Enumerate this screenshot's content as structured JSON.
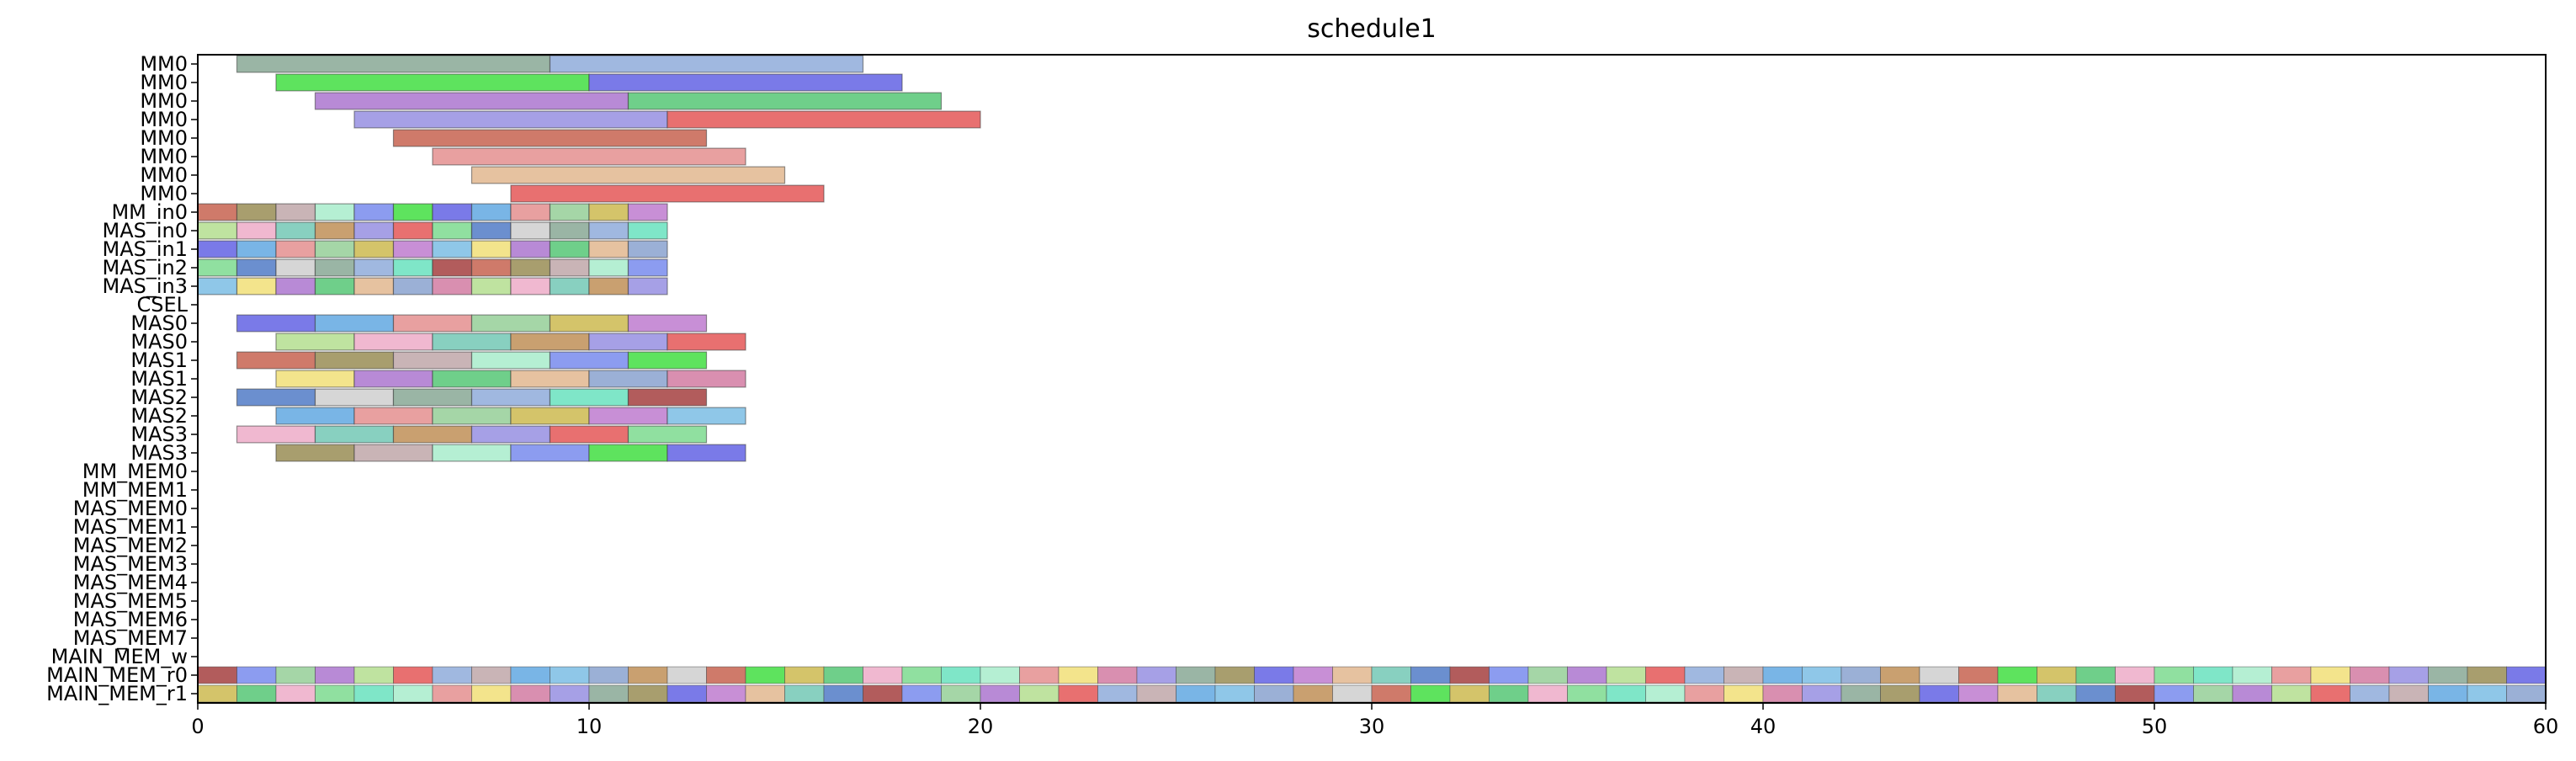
{
  "chart_data": {
    "type": "gantt",
    "title": "schedule1",
    "xlabel": "",
    "ylabel": "",
    "xlim": [
      0,
      60
    ],
    "xticks": [
      0,
      10,
      20,
      30,
      40,
      50,
      60
    ],
    "grid": false,
    "rows": [
      "MM0",
      "MM0",
      "MM0",
      "MM0",
      "MM0",
      "MM0",
      "MM0",
      "MM0",
      "MM_in0",
      "MAS_in0",
      "MAS_in1",
      "MAS_in2",
      "MAS_in3",
      "CSEL",
      "MAS0",
      "MAS0",
      "MAS1",
      "MAS1",
      "MAS2",
      "MAS2",
      "MAS3",
      "MAS3",
      "MM_MEM0",
      "MM_MEM1",
      "MAS_MEM0",
      "MAS_MEM1",
      "MAS_MEM2",
      "MAS_MEM3",
      "MAS_MEM4",
      "MAS_MEM5",
      "MAS_MEM6",
      "MAS_MEM7",
      "MAIN_MEM_w",
      "MAIN_MEM_r0",
      "MAIN_MEM_r1"
    ],
    "palette": [
      "#9ab5a5",
      "#a0b8e0",
      "#7fe6c8",
      "#b25c5c",
      "#cf7a6a",
      "#a89e6e",
      "#c9b4b6",
      "#b5efd3",
      "#8c9cf0",
      "#5ee35e",
      "#7a7ae8",
      "#79b5e6",
      "#e8a0a0",
      "#a5d6a7",
      "#d4c46a",
      "#c88fd6",
      "#8fc7e8",
      "#f3e48c",
      "#b88ad6",
      "#6fcf8a",
      "#e6c2a0",
      "#9bb0d6",
      "#d98fb0",
      "#bfe3a0",
      "#f0b8d0",
      "#88d0c0",
      "#c9a070",
      "#a6a0e6",
      "#e87070",
      "#90e0a0",
      "#6b8fcf",
      "#d6d6d6"
    ],
    "bars": [
      {
        "row": 0,
        "start": 1,
        "end": 9
      },
      {
        "row": 0,
        "start": 9,
        "end": 17
      },
      {
        "row": 1,
        "start": 2,
        "end": 10
      },
      {
        "row": 1,
        "start": 10,
        "end": 18
      },
      {
        "row": 2,
        "start": 3,
        "end": 11
      },
      {
        "row": 2,
        "start": 11,
        "end": 19
      },
      {
        "row": 3,
        "start": 4,
        "end": 12
      },
      {
        "row": 3,
        "start": 12,
        "end": 20
      },
      {
        "row": 4,
        "start": 5,
        "end": 13
      },
      {
        "row": 5,
        "start": 6,
        "end": 14
      },
      {
        "row": 6,
        "start": 7,
        "end": 15
      },
      {
        "row": 7,
        "start": 8,
        "end": 16
      },
      {
        "row": 8,
        "start": 0,
        "end": 1
      },
      {
        "row": 8,
        "start": 1,
        "end": 2
      },
      {
        "row": 8,
        "start": 2,
        "end": 3
      },
      {
        "row": 8,
        "start": 3,
        "end": 4
      },
      {
        "row": 8,
        "start": 4,
        "end": 5
      },
      {
        "row": 8,
        "start": 5,
        "end": 6
      },
      {
        "row": 8,
        "start": 6,
        "end": 7
      },
      {
        "row": 8,
        "start": 7,
        "end": 8
      },
      {
        "row": 8,
        "start": 8,
        "end": 9
      },
      {
        "row": 8,
        "start": 9,
        "end": 10
      },
      {
        "row": 8,
        "start": 10,
        "end": 11
      },
      {
        "row": 8,
        "start": 11,
        "end": 12
      },
      {
        "row": 9,
        "start": 0,
        "end": 1
      },
      {
        "row": 9,
        "start": 1,
        "end": 2
      },
      {
        "row": 9,
        "start": 2,
        "end": 3
      },
      {
        "row": 9,
        "start": 3,
        "end": 4
      },
      {
        "row": 9,
        "start": 4,
        "end": 5
      },
      {
        "row": 9,
        "start": 5,
        "end": 6
      },
      {
        "row": 9,
        "start": 6,
        "end": 7
      },
      {
        "row": 9,
        "start": 7,
        "end": 8
      },
      {
        "row": 9,
        "start": 8,
        "end": 9
      },
      {
        "row": 9,
        "start": 9,
        "end": 10
      },
      {
        "row": 9,
        "start": 10,
        "end": 11
      },
      {
        "row": 9,
        "start": 11,
        "end": 12
      },
      {
        "row": 10,
        "start": 0,
        "end": 1
      },
      {
        "row": 10,
        "start": 1,
        "end": 2
      },
      {
        "row": 10,
        "start": 2,
        "end": 3
      },
      {
        "row": 10,
        "start": 3,
        "end": 4
      },
      {
        "row": 10,
        "start": 4,
        "end": 5
      },
      {
        "row": 10,
        "start": 5,
        "end": 6
      },
      {
        "row": 10,
        "start": 6,
        "end": 7
      },
      {
        "row": 10,
        "start": 7,
        "end": 8
      },
      {
        "row": 10,
        "start": 8,
        "end": 9
      },
      {
        "row": 10,
        "start": 9,
        "end": 10
      },
      {
        "row": 10,
        "start": 10,
        "end": 11
      },
      {
        "row": 10,
        "start": 11,
        "end": 12
      },
      {
        "row": 11,
        "start": 0,
        "end": 1
      },
      {
        "row": 11,
        "start": 1,
        "end": 2
      },
      {
        "row": 11,
        "start": 2,
        "end": 3
      },
      {
        "row": 11,
        "start": 3,
        "end": 4
      },
      {
        "row": 11,
        "start": 4,
        "end": 5
      },
      {
        "row": 11,
        "start": 5,
        "end": 6
      },
      {
        "row": 11,
        "start": 6,
        "end": 7
      },
      {
        "row": 11,
        "start": 7,
        "end": 8
      },
      {
        "row": 11,
        "start": 8,
        "end": 9
      },
      {
        "row": 11,
        "start": 9,
        "end": 10
      },
      {
        "row": 11,
        "start": 10,
        "end": 11
      },
      {
        "row": 11,
        "start": 11,
        "end": 12
      },
      {
        "row": 12,
        "start": 0,
        "end": 1
      },
      {
        "row": 12,
        "start": 1,
        "end": 2
      },
      {
        "row": 12,
        "start": 2,
        "end": 3
      },
      {
        "row": 12,
        "start": 3,
        "end": 4
      },
      {
        "row": 12,
        "start": 4,
        "end": 5
      },
      {
        "row": 12,
        "start": 5,
        "end": 6
      },
      {
        "row": 12,
        "start": 6,
        "end": 7
      },
      {
        "row": 12,
        "start": 7,
        "end": 8
      },
      {
        "row": 12,
        "start": 8,
        "end": 9
      },
      {
        "row": 12,
        "start": 9,
        "end": 10
      },
      {
        "row": 12,
        "start": 10,
        "end": 11
      },
      {
        "row": 12,
        "start": 11,
        "end": 12
      },
      {
        "row": 14,
        "start": 1,
        "end": 3
      },
      {
        "row": 14,
        "start": 3,
        "end": 5
      },
      {
        "row": 14,
        "start": 5,
        "end": 7
      },
      {
        "row": 14,
        "start": 7,
        "end": 9
      },
      {
        "row": 14,
        "start": 9,
        "end": 11
      },
      {
        "row": 14,
        "start": 11,
        "end": 13
      },
      {
        "row": 15,
        "start": 2,
        "end": 4
      },
      {
        "row": 15,
        "start": 4,
        "end": 6
      },
      {
        "row": 15,
        "start": 6,
        "end": 8
      },
      {
        "row": 15,
        "start": 8,
        "end": 10
      },
      {
        "row": 15,
        "start": 10,
        "end": 12
      },
      {
        "row": 15,
        "start": 12,
        "end": 14
      },
      {
        "row": 16,
        "start": 1,
        "end": 3
      },
      {
        "row": 16,
        "start": 3,
        "end": 5
      },
      {
        "row": 16,
        "start": 5,
        "end": 7
      },
      {
        "row": 16,
        "start": 7,
        "end": 9
      },
      {
        "row": 16,
        "start": 9,
        "end": 11
      },
      {
        "row": 16,
        "start": 11,
        "end": 13
      },
      {
        "row": 17,
        "start": 2,
        "end": 4
      },
      {
        "row": 17,
        "start": 4,
        "end": 6
      },
      {
        "row": 17,
        "start": 6,
        "end": 8
      },
      {
        "row": 17,
        "start": 8,
        "end": 10
      },
      {
        "row": 17,
        "start": 10,
        "end": 12
      },
      {
        "row": 17,
        "start": 12,
        "end": 14
      },
      {
        "row": 18,
        "start": 1,
        "end": 3
      },
      {
        "row": 18,
        "start": 3,
        "end": 5
      },
      {
        "row": 18,
        "start": 5,
        "end": 7
      },
      {
        "row": 18,
        "start": 7,
        "end": 9
      },
      {
        "row": 18,
        "start": 9,
        "end": 11
      },
      {
        "row": 18,
        "start": 11,
        "end": 13
      },
      {
        "row": 19,
        "start": 2,
        "end": 4
      },
      {
        "row": 19,
        "start": 4,
        "end": 6
      },
      {
        "row": 19,
        "start": 6,
        "end": 8
      },
      {
        "row": 19,
        "start": 8,
        "end": 10
      },
      {
        "row": 19,
        "start": 10,
        "end": 12
      },
      {
        "row": 19,
        "start": 12,
        "end": 14
      },
      {
        "row": 20,
        "start": 1,
        "end": 3
      },
      {
        "row": 20,
        "start": 3,
        "end": 5
      },
      {
        "row": 20,
        "start": 5,
        "end": 7
      },
      {
        "row": 20,
        "start": 7,
        "end": 9
      },
      {
        "row": 20,
        "start": 9,
        "end": 11
      },
      {
        "row": 20,
        "start": 11,
        "end": 13
      },
      {
        "row": 21,
        "start": 2,
        "end": 4
      },
      {
        "row": 21,
        "start": 4,
        "end": 6
      },
      {
        "row": 21,
        "start": 6,
        "end": 8
      },
      {
        "row": 21,
        "start": 8,
        "end": 10
      },
      {
        "row": 21,
        "start": 10,
        "end": 12
      },
      {
        "row": 21,
        "start": 12,
        "end": 14
      }
    ],
    "full_rows": [
      33,
      34
    ]
  }
}
